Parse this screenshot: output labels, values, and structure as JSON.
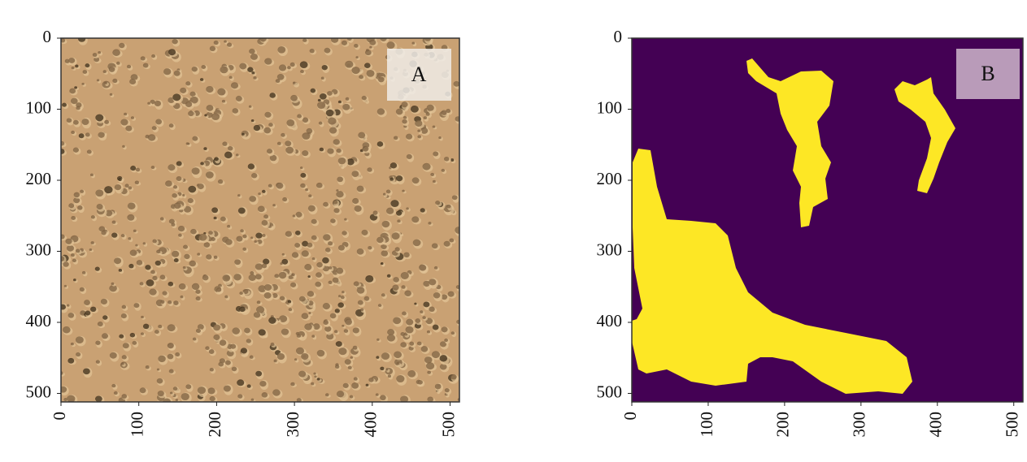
{
  "chart_data": [
    {
      "type": "image",
      "label": "A",
      "xlim": [
        0,
        512
      ],
      "ylim": [
        512,
        0
      ],
      "xticks": [
        0,
        100,
        200,
        300,
        400,
        500
      ],
      "yticks": [
        0,
        100,
        200,
        300,
        400,
        500
      ]
    },
    {
      "type": "image",
      "label": "B",
      "xlim": [
        0,
        512
      ],
      "ylim": [
        512,
        0
      ],
      "xticks": [
        0,
        100,
        200,
        300,
        400,
        500
      ],
      "yticks": [
        0,
        100,
        200,
        300,
        400,
        500
      ]
    }
  ]
}
